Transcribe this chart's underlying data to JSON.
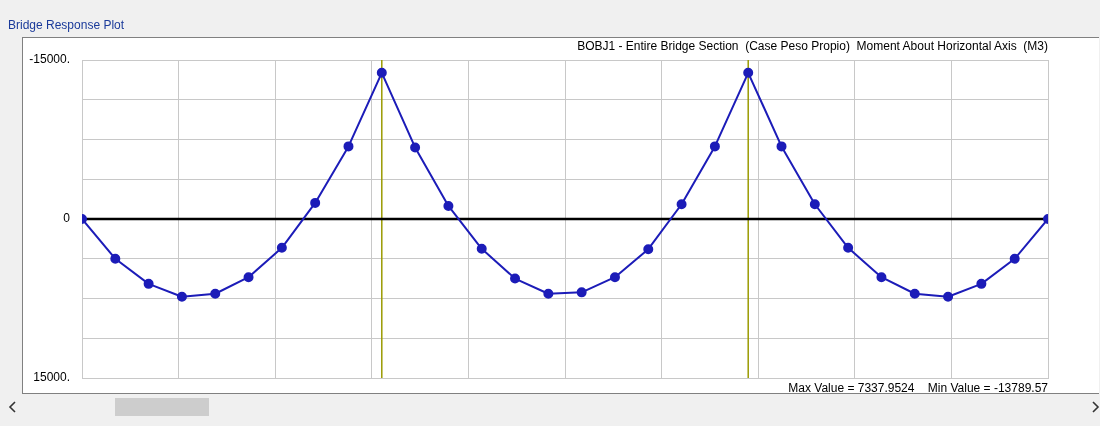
{
  "chart_data": {
    "type": "line",
    "title": "Bridge Response Plot",
    "subtitle": "BOBJ1 - Entire Bridge Section  (Case Peso Propio)  Moment About Horizontal Axis  (M3)",
    "annotations": [
      "Max Value = 7337.9524    Min Value = -13789.57"
    ],
    "categories": [
      null,
      null,
      null,
      null,
      null,
      null,
      null,
      null,
      null,
      null,
      null,
      null,
      null,
      null,
      null,
      null,
      null,
      null,
      null,
      null,
      null,
      null,
      null,
      null,
      null,
      null,
      null,
      null,
      null,
      null
    ],
    "series": [
      {
        "color": "#1c1cb8",
        "values": [
          0,
          3750,
          6120,
          7338,
          7050,
          5490,
          2720,
          -1520,
          -6850,
          -13790,
          -6750,
          -1230,
          2810,
          5620,
          7050,
          6920,
          5490,
          2850,
          -1390,
          -6850,
          -13790,
          -6850,
          -1390,
          2720,
          5490,
          7050,
          7338,
          6120,
          3750,
          0
        ]
      }
    ],
    "ylim": [
      15000,
      -15000
    ],
    "yticks": [
      {
        "value": -15000,
        "label": "-15000."
      },
      {
        "value": -11250,
        "label": null
      },
      {
        "value": -7500,
        "label": null
      },
      {
        "value": -3750,
        "label": null
      },
      0,
      {
        "value": 3750,
        "label": null
      },
      {
        "value": 7500,
        "label": null
      },
      {
        "value": 11250,
        "label": null
      },
      {
        "value": 15000,
        "label": "15000."
      }
    ],
    "ref_lines": [
      {
        "axis": "y",
        "value": 0,
        "color": "#000000"
      }
    ],
    "tick_labels": "y",
    "grid": true,
    "marker": "circle",
    "line_style": "solid"
  }
}
